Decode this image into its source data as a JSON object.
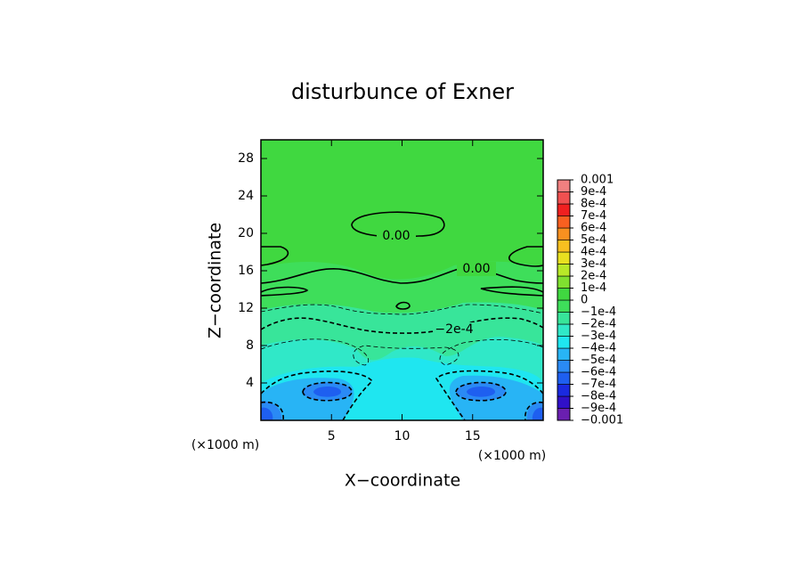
{
  "chart_data": {
    "type": "contour",
    "title": "disturbunce of Exner",
    "xlabel": "X−coordinate",
    "ylabel": "Z−coordinate",
    "x_unit_labels": [
      "(×1000 m)",
      "(×1000 m)"
    ],
    "xlim": [
      0,
      20
    ],
    "xticks": [
      5,
      10,
      15
    ],
    "ylim": [
      0,
      30
    ],
    "yticks": [
      4,
      8,
      12,
      16,
      20,
      24,
      28
    ],
    "clim": [
      -0.001,
      0.001
    ],
    "cticks": [
      {
        "value": -0.001,
        "label": "−0.001"
      },
      {
        "value": -0.0009,
        "label": "−9e-4"
      },
      {
        "value": -0.0008,
        "label": "−8e-4"
      },
      {
        "value": -0.0007,
        "label": "−7e-4"
      },
      {
        "value": -0.0006,
        "label": "−6e-4"
      },
      {
        "value": -0.0005,
        "label": "−5e-4"
      },
      {
        "value": -0.0004,
        "label": "−4e-4"
      },
      {
        "value": -0.0003,
        "label": "−3e-4"
      },
      {
        "value": -0.0002,
        "label": "−2e-4"
      },
      {
        "value": -0.0001,
        "label": "−1e-4"
      },
      0,
      {
        "value": 0.0001,
        "label": "1e-4"
      },
      {
        "value": 0.0002,
        "label": "2e-4"
      },
      {
        "value": 0.0003,
        "label": "3e-4"
      },
      {
        "value": 0.0004,
        "label": "4e-4"
      },
      {
        "value": 0.0005,
        "label": "5e-4"
      },
      {
        "value": 0.0006,
        "label": "6e-4"
      },
      {
        "value": 0.0007,
        "label": "7e-4"
      },
      {
        "value": 0.0008,
        "label": "8e-4"
      },
      {
        "value": 0.0009,
        "label": "9e-4"
      },
      0.001
    ],
    "colors": [
      "#6a1fb0",
      "#3010c8",
      "#1a2ae0",
      "#1e5ff0",
      "#2a8af5",
      "#28b4f5",
      "#1fe6f0",
      "#30e8c8",
      "#38e59a",
      "#3ede5a",
      "#40d840",
      "#80e030",
      "#b8e828",
      "#e8e020",
      "#f8c020",
      "#f89020",
      "#f86020",
      "#f02020",
      "#f05050",
      "#f08080"
    ],
    "contour_labels": [
      {
        "value": 0,
        "label": "0.00"
      },
      {
        "value": 0,
        "label": "0.00"
      },
      {
        "value": -0.0002,
        "label": "−2e-4"
      }
    ]
  }
}
